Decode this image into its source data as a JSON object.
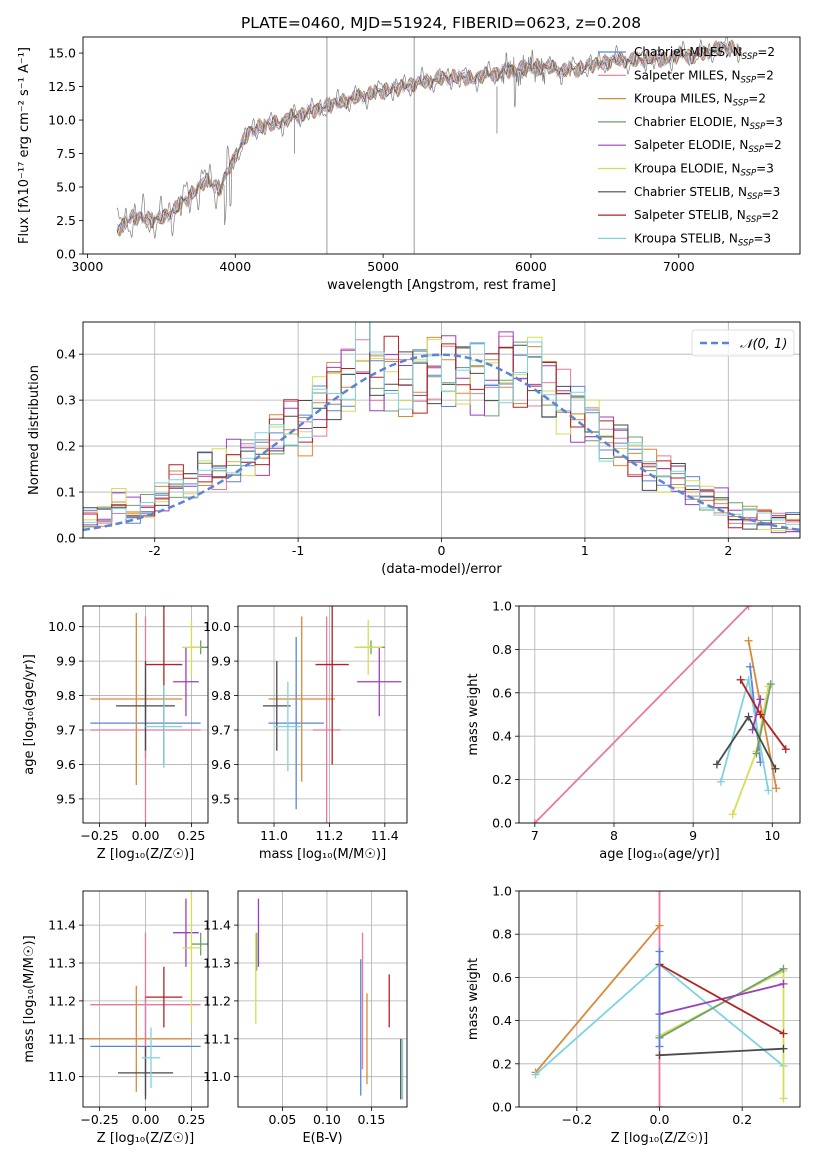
{
  "figure_title": "PLATE=0460, MJD=51924, FIBERID=0623, z=0.208",
  "chart_data": [
    {
      "id": "spectrum",
      "type": "line",
      "xlabel": "wavelength [Angstrom, rest frame]",
      "ylabel": "Flux [fλ10⁻¹⁷ erg cm⁻² s⁻¹ A⁻¹]",
      "xlim": [
        2970,
        7820
      ],
      "ylim": [
        0,
        16.2
      ],
      "xticks": [
        3000,
        4000,
        5000,
        6000,
        7000
      ],
      "yticks": [
        0.0,
        2.5,
        5.0,
        7.5,
        10.0,
        12.5,
        15.0
      ],
      "data_x": [
        3200,
        3300,
        3400,
        3500,
        3600,
        3700,
        3800,
        3900,
        4000,
        4100,
        4200,
        4300,
        4400,
        4500,
        4600,
        4700,
        4800,
        4900,
        5000,
        5100,
        5200,
        5300,
        5400,
        5500,
        5600,
        5700,
        5800,
        5900,
        6000,
        6100,
        6200,
        6300,
        6400,
        6500,
        6600,
        6700,
        6800,
        6900,
        7000,
        7100,
        7200,
        7300,
        7400,
        7430
      ],
      "data_y": [
        1.8,
        2.8,
        2.6,
        2.6,
        3.4,
        4.4,
        5.5,
        4.9,
        7.4,
        9.2,
        9.6,
        9.8,
        10.3,
        10.6,
        11.0,
        11.3,
        11.6,
        11.9,
        12.2,
        12.4,
        12.7,
        12.9,
        13.1,
        13.2,
        13.1,
        13.4,
        13.6,
        13.8,
        13.9,
        14.0,
        13.7,
        13.8,
        14.1,
        14.3,
        14.5,
        14.4,
        14.6,
        14.5,
        14.9,
        14.8,
        15.1,
        15.4,
        15.3,
        14.9
      ],
      "legend_placement": "right",
      "series": [
        {
          "label": "Chabrier MILES, N",
          "sub": "SSP",
          "tail": "=2",
          "color": "#5b84d8"
        },
        {
          "label": "Salpeter MILES, N",
          "sub": "SSP",
          "tail": "=2",
          "color": "#e8799e"
        },
        {
          "label": "Kroupa MILES, N",
          "sub": "SSP",
          "tail": "=2",
          "color": "#d9893b"
        },
        {
          "label": "Chabrier ELODIE, N",
          "sub": "SSP",
          "tail": "=3",
          "color": "#6f9e6f"
        },
        {
          "label": "Salpeter ELODIE, N",
          "sub": "SSP",
          "tail": "=2",
          "color": "#9a3fbf"
        },
        {
          "label": "Kroupa ELODIE, N",
          "sub": "SSP",
          "tail": "=3",
          "color": "#d7dc55"
        },
        {
          "label": "Chabrier STELIB, N",
          "sub": "SSP",
          "tail": "=3",
          "color": "#4a4a4a"
        },
        {
          "label": "Salpeter STELIB, N",
          "sub": "SSP",
          "tail": "=2",
          "color": "#b22222"
        },
        {
          "label": "Kroupa STELIB, N",
          "sub": "SSP",
          "tail": "=3",
          "color": "#7fd3e0"
        }
      ]
    },
    {
      "id": "residual-histogram",
      "type": "bar",
      "xlabel": "(data-model)/error",
      "ylabel": "Normed distribution",
      "xlim": [
        -2.5,
        2.5
      ],
      "ylim": [
        0,
        0.47
      ],
      "xticks": [
        -2,
        -1,
        0,
        1,
        2
      ],
      "yticks": [
        0.0,
        0.1,
        0.2,
        0.3,
        0.4
      ],
      "bin_edges_start": -2.5,
      "bin_width": 0.1,
      "histogram_values": [
        0.04,
        0.045,
        0.08,
        0.06,
        0.065,
        0.085,
        0.12,
        0.11,
        0.15,
        0.15,
        0.17,
        0.18,
        0.18,
        0.22,
        0.25,
        0.24,
        0.29,
        0.33,
        0.35,
        0.42,
        0.34,
        0.36,
        0.34,
        0.35,
        0.37,
        0.37,
        0.36,
        0.35,
        0.34,
        0.38,
        0.36,
        0.37,
        0.33,
        0.3,
        0.27,
        0.25,
        0.22,
        0.21,
        0.18,
        0.15,
        0.14,
        0.13,
        0.1,
        0.09,
        0.08,
        0.05,
        0.045,
        0.04,
        0.03,
        0.03
      ],
      "curve_label": "𝒩(0, 1)",
      "curve_color": "#5b84d8",
      "grid": true,
      "legend_placement": "top-right"
    },
    {
      "id": "age-vs-metallicity",
      "type": "scatter",
      "xlabel": "Z [log₁₀(Z/Z☉)]",
      "ylabel": "age  [log₁₀(age/yr)]",
      "xlim": [
        -0.34,
        0.34
      ],
      "ylim": [
        9.43,
        10.06
      ],
      "xticks": [
        -0.25,
        0.0,
        0.25
      ],
      "xticklabels": [
        "−0.25",
        "0.00",
        "0.25"
      ],
      "yticks": [
        9.5,
        9.6,
        9.7,
        9.8,
        9.9,
        10.0
      ],
      "yticklabels": [
        "9.5",
        "9.6",
        "9.7",
        "9.8",
        "9.9",
        "10.0"
      ],
      "points": [
        {
          "x": 0.0,
          "y": 9.72,
          "xerr": 0.3,
          "yerr": 0.1,
          "color": "#5b84d8"
        },
        {
          "x": 0.0,
          "y": 9.7,
          "xerr": 0.3,
          "yerr": 0.33,
          "color": "#e8799e"
        },
        {
          "x": -0.05,
          "y": 9.79,
          "xerr": 0.25,
          "yerr": 0.25,
          "color": "#d9893b"
        },
        {
          "x": 0.3,
          "y": 9.94,
          "xerr": 0.05,
          "yerr": 0.02,
          "color": "#6f9e6f"
        },
        {
          "x": 0.22,
          "y": 9.84,
          "xerr": 0.07,
          "yerr": 0.1,
          "color": "#9a3fbf"
        },
        {
          "x": 0.25,
          "y": 9.94,
          "xerr": 0.05,
          "yerr": 0.08,
          "color": "#d7dc55"
        },
        {
          "x": 0.0,
          "y": 9.77,
          "xerr": 0.16,
          "yerr": 0.13,
          "color": "#4a4a4a"
        },
        {
          "x": 0.1,
          "y": 9.89,
          "xerr": 0.1,
          "yerr": 0.29,
          "color": "#b22222"
        },
        {
          "x": 0.1,
          "y": 9.71,
          "xerr": 0.1,
          "yerr": 0.12,
          "color": "#7fd3e0"
        }
      ]
    },
    {
      "id": "age-vs-mass",
      "type": "scatter",
      "xlabel": "mass [log₁₀(M/M☉)]",
      "ylabel": "",
      "xlim": [
        10.87,
        11.48
      ],
      "ylim": [
        9.43,
        10.06
      ],
      "xticks": [
        11.0,
        11.2,
        11.4
      ],
      "xticklabels": [
        "11.0",
        "11.2",
        "11.4"
      ],
      "yticks": [
        9.5,
        9.6,
        9.7,
        9.8,
        9.9,
        10.0
      ],
      "yticklabels": [
        "9.5",
        "9.6",
        "9.7",
        "9.8",
        "9.9",
        "10.0"
      ],
      "points": [
        {
          "x": 11.08,
          "y": 9.72,
          "xerr": 0.1,
          "yerr": 0.25,
          "color": "#5b84d8"
        },
        {
          "x": 11.19,
          "y": 9.7,
          "xerr": 0.05,
          "yerr": 0.33,
          "color": "#e8799e"
        },
        {
          "x": 11.1,
          "y": 9.79,
          "xerr": 0.12,
          "yerr": 0.24,
          "color": "#d9893b"
        },
        {
          "x": 11.35,
          "y": 9.94,
          "xerr": 0.05,
          "yerr": 0.02,
          "color": "#6f9e6f"
        },
        {
          "x": 11.38,
          "y": 9.84,
          "xerr": 0.08,
          "yerr": 0.1,
          "color": "#9a3fbf"
        },
        {
          "x": 11.34,
          "y": 9.94,
          "xerr": 0.05,
          "yerr": 0.08,
          "color": "#d7dc55"
        },
        {
          "x": 11.01,
          "y": 9.77,
          "xerr": 0.05,
          "yerr": 0.13,
          "color": "#4a4a4a"
        },
        {
          "x": 11.21,
          "y": 9.89,
          "xerr": 0.06,
          "yerr": 0.29,
          "color": "#b22222"
        },
        {
          "x": 11.05,
          "y": 9.71,
          "xerr": 0.05,
          "yerr": 0.13,
          "color": "#7fd3e0"
        }
      ]
    },
    {
      "id": "mass-weight-vs-age",
      "type": "line",
      "xlabel": "age  [log₁₀(age/yr)]",
      "ylabel": "mass weight",
      "xlim": [
        6.8,
        10.35
      ],
      "ylim": [
        0,
        1
      ],
      "xticks": [
        7,
        8,
        9,
        10
      ],
      "xticklabels": [
        "7",
        "8",
        "9",
        "10"
      ],
      "yticks": [
        0.0,
        0.2,
        0.4,
        0.6,
        0.8,
        1.0
      ],
      "yticklabels": [
        "0.0",
        "0.2",
        "0.4",
        "0.6",
        "0.8",
        "1.0"
      ],
      "series": [
        {
          "color": "#e8799e",
          "x": [
            7.0,
            9.7
          ],
          "y": [
            0.0,
            1.0
          ]
        },
        {
          "color": "#d9893b",
          "x": [
            9.7,
            10.05
          ],
          "y": [
            0.84,
            0.16
          ]
        },
        {
          "color": "#5b84d8",
          "x": [
            9.72,
            9.85
          ],
          "y": [
            0.72,
            0.28
          ]
        },
        {
          "color": "#7fd3e0",
          "x": [
            9.35,
            9.7,
            9.95
          ],
          "y": [
            0.19,
            0.66,
            0.15
          ]
        },
        {
          "color": "#d7dc55",
          "x": [
            9.5,
            9.8,
            9.95
          ],
          "y": [
            0.04,
            0.33,
            0.63
          ]
        },
        {
          "color": "#6f9e6f",
          "x": [
            9.8,
            9.98
          ],
          "y": [
            0.32,
            0.64
          ]
        },
        {
          "color": "#9a3fbf",
          "x": [
            9.75,
            9.85
          ],
          "y": [
            0.43,
            0.57
          ]
        },
        {
          "color": "#4a4a4a",
          "x": [
            9.3,
            9.7,
            10.04
          ],
          "y": [
            0.27,
            0.49,
            0.25
          ]
        },
        {
          "color": "#b22222",
          "x": [
            9.6,
            9.85,
            10.17
          ],
          "y": [
            0.66,
            0.5,
            0.34
          ]
        }
      ]
    },
    {
      "id": "mass-vs-metallicity",
      "type": "scatter",
      "xlabel": "Z [log₁₀(Z/Z☉)]",
      "ylabel": "mass [log₁₀(M/M☉)]",
      "xlim": [
        -0.34,
        0.34
      ],
      "ylim": [
        10.92,
        11.49
      ],
      "xticks": [
        -0.25,
        0.0,
        0.25
      ],
      "xticklabels": [
        "−0.25",
        "0.00",
        "0.25"
      ],
      "yticks": [
        11.0,
        11.1,
        11.2,
        11.3,
        11.4
      ],
      "yticklabels": [
        "11.0",
        "11.1",
        "11.2",
        "11.3",
        "11.4"
      ],
      "points": [
        {
          "x": 0.0,
          "y": 11.08,
          "xerr": 0.3,
          "yerr": 0.13,
          "color": "#5b84d8"
        },
        {
          "x": 0.0,
          "y": 11.19,
          "xerr": 0.3,
          "yerr": 0.19,
          "color": "#e8799e"
        },
        {
          "x": -0.05,
          "y": 11.1,
          "xerr": 0.3,
          "yerr": 0.14,
          "color": "#d9893b"
        },
        {
          "x": 0.3,
          "y": 11.35,
          "xerr": 0.05,
          "yerr": 0.03,
          "color": "#6f9e6f"
        },
        {
          "x": 0.22,
          "y": 11.38,
          "xerr": 0.07,
          "yerr": 0.09,
          "color": "#9a3fbf"
        },
        {
          "x": 0.25,
          "y": 11.34,
          "xerr": 0.05,
          "yerr": 0.2,
          "color": "#d7dc55"
        },
        {
          "x": 0.0,
          "y": 11.01,
          "xerr": 0.15,
          "yerr": 0.07,
          "color": "#4a4a4a"
        },
        {
          "x": 0.1,
          "y": 11.21,
          "xerr": 0.1,
          "yerr": 0.08,
          "color": "#b22222"
        },
        {
          "x": 0.03,
          "y": 11.05,
          "xerr": 0.05,
          "yerr": 0.08,
          "color": "#7fd3e0"
        }
      ]
    },
    {
      "id": "mass-vs-extinction",
      "type": "scatter",
      "xlabel": "E(B-V)",
      "ylabel": "",
      "xlim": [
        0.0,
        0.19
      ],
      "ylim": [
        10.92,
        11.49
      ],
      "xticks": [
        0.05,
        0.1,
        0.15
      ],
      "xticklabels": [
        "0.05",
        "0.10",
        "0.15"
      ],
      "yticks": [
        11.0,
        11.1,
        11.2,
        11.3,
        11.4
      ],
      "yticklabels": [
        "11.0",
        "11.1",
        "11.2",
        "11.3",
        "11.4"
      ],
      "points": [
        {
          "x": 0.138,
          "y": 11.13,
          "xerr": 0,
          "yerr": 0.18,
          "color": "#5b84d8"
        },
        {
          "x": 0.14,
          "y": 11.2,
          "xerr": 0,
          "yerr": 0.18,
          "color": "#e8799e"
        },
        {
          "x": 0.145,
          "y": 11.1,
          "xerr": 0,
          "yerr": 0.12,
          "color": "#d9893b"
        },
        {
          "x": 0.021,
          "y": 11.33,
          "xerr": 0,
          "yerr": 0.05,
          "color": "#6f9e6f"
        },
        {
          "x": 0.023,
          "y": 11.38,
          "xerr": 0,
          "yerr": 0.09,
          "color": "#9a3fbf"
        },
        {
          "x": 0.02,
          "y": 11.26,
          "xerr": 0,
          "yerr": 0.12,
          "color": "#d7dc55"
        },
        {
          "x": 0.183,
          "y": 11.02,
          "xerr": 0,
          "yerr": 0.08,
          "color": "#4a4a4a"
        },
        {
          "x": 0.17,
          "y": 11.2,
          "xerr": 0,
          "yerr": 0.07,
          "color": "#b22222"
        },
        {
          "x": 0.185,
          "y": 11.02,
          "xerr": 0,
          "yerr": 0.08,
          "color": "#7fd3e0"
        }
      ]
    },
    {
      "id": "mass-weight-vs-metallicity",
      "type": "line",
      "xlabel": "Z [log₁₀(Z/Z☉)]",
      "ylabel": "mass weight",
      "xlim": [
        -0.34,
        0.34
      ],
      "ylim": [
        0,
        1
      ],
      "xticks": [
        -0.2,
        0.0,
        0.2
      ],
      "xticklabels": [
        "−0.2",
        "0.0",
        "0.2"
      ],
      "yticks": [
        0.0,
        0.2,
        0.4,
        0.6,
        0.8,
        1.0
      ],
      "yticklabels": [
        "0.0",
        "0.2",
        "0.4",
        "0.6",
        "0.8",
        "1.0"
      ],
      "series": [
        {
          "color": "#e8799e",
          "x": [
            0.0,
            0.0
          ],
          "y": [
            0.0,
            1.0
          ]
        },
        {
          "color": "#d9893b",
          "x": [
            -0.3,
            0.0
          ],
          "y": [
            0.16,
            0.84
          ]
        },
        {
          "color": "#7fd3e0",
          "x": [
            -0.3,
            0.0,
            0.3
          ],
          "y": [
            0.15,
            0.66,
            0.19
          ]
        },
        {
          "color": "#d7dc55",
          "x": [
            0.0,
            0.3,
            0.3
          ],
          "y": [
            0.33,
            0.63,
            0.04
          ]
        },
        {
          "color": "#6f9e6f",
          "x": [
            0.0,
            0.3
          ],
          "y": [
            0.32,
            0.64
          ]
        },
        {
          "color": "#9a3fbf",
          "x": [
            0.0,
            0.3
          ],
          "y": [
            0.43,
            0.57
          ]
        },
        {
          "color": "#4a4a4a",
          "x": [
            0.0,
            0.3
          ],
          "y": [
            0.24,
            0.27
          ]
        },
        {
          "color": "#b22222",
          "x": [
            0.0,
            0.3
          ],
          "y": [
            0.66,
            0.34
          ]
        },
        {
          "color": "#5b84d8",
          "x": [
            0.0,
            0.0
          ],
          "y": [
            0.28,
            0.72
          ]
        }
      ]
    }
  ]
}
